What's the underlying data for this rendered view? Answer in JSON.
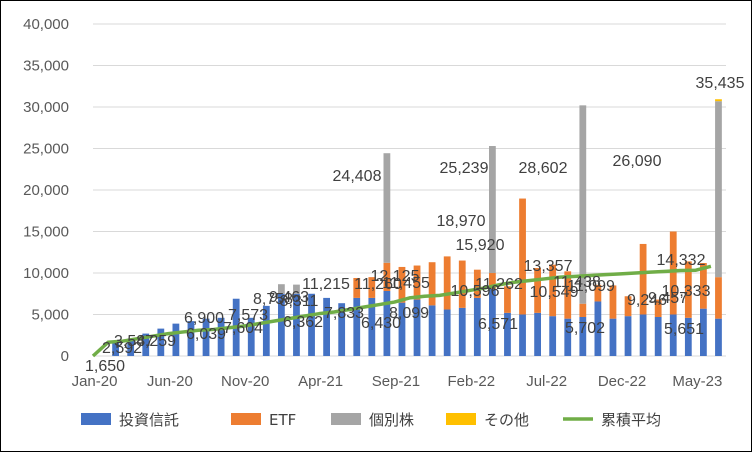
{
  "chart_data": {
    "type": "bar",
    "stacked": true,
    "grid": true,
    "legend_position": "bottom",
    "ylim": [
      0,
      40000
    ],
    "y_ticks": [
      "0",
      "5,000",
      "10,000",
      "15,000",
      "20,000",
      "25,000",
      "30,000",
      "35,000",
      "40,000"
    ],
    "x_tick_labels": [
      "Jan-20",
      "Jun-20",
      "Nov-20",
      "Apr-21",
      "Sep-21",
      "Feb-22",
      "Jul-22",
      "Dec-22",
      "May-23"
    ],
    "x_tick_every": 5,
    "categories": [
      "Jan-20",
      "Feb-20",
      "Mar-20",
      "Apr-20",
      "May-20",
      "Jun-20",
      "Jul-20",
      "Aug-20",
      "Sep-20",
      "Oct-20",
      "Nov-20",
      "Dec-20",
      "Jan-21",
      "Feb-21",
      "Mar-21",
      "Apr-21",
      "May-21",
      "Jun-21",
      "Jul-21",
      "Aug-21",
      "Sep-21",
      "Oct-21",
      "Nov-21",
      "Dec-21",
      "Jan-22",
      "Feb-22",
      "Mar-22",
      "Apr-22",
      "May-22",
      "Jun-22",
      "Jul-22",
      "Aug-22",
      "Sep-22",
      "Oct-22",
      "Nov-22",
      "Dec-22",
      "Jan-23",
      "Feb-23",
      "Mar-23",
      "Apr-23",
      "May-23",
      "Jun-23"
    ],
    "series": [
      {
        "name": "投資信託",
        "color": "#4472c4",
        "values": [
          0,
          1650,
          2000,
          2700,
          3300,
          3900,
          4200,
          4500,
          4600,
          6900,
          4600,
          6039,
          7500,
          7500,
          7500,
          7000,
          6362,
          7000,
          7000,
          7833,
          6430,
          6800,
          6100,
          5600,
          5800,
          7000,
          8099,
          5200,
          5000,
          5200,
          4800,
          4500,
          4700,
          6571,
          4500,
          4800,
          5000,
          4700,
          5000,
          4600,
          5702,
          4500
        ]
      },
      {
        "name": "ETF",
        "color": "#ed7d31",
        "values": [
          0,
          0,
          0,
          0,
          0,
          0,
          0,
          0,
          0,
          0,
          0,
          0,
          0,
          0,
          0,
          0,
          0,
          2400,
          2500,
          3400,
          4300,
          4100,
          5200,
          6400,
          5700,
          3400,
          1900,
          3200,
          13970,
          5400,
          6200,
          5700,
          1600,
          2000,
          4000,
          2400,
          8500,
          2100,
          10000,
          6800,
          5500,
          5000
        ]
      },
      {
        "name": "個別株",
        "color": "#a5a5a5",
        "values": [
          0,
          0,
          0,
          0,
          0,
          0,
          0,
          0,
          0,
          0,
          0,
          0,
          1150,
          1100,
          0,
          0,
          0,
          0,
          0,
          13200,
          0,
          0,
          0,
          0,
          0,
          0,
          15300,
          0,
          0,
          0,
          0,
          0,
          23900,
          0,
          0,
          0,
          0,
          0,
          0,
          0,
          0,
          21200
        ]
      },
      {
        "name": "その他",
        "color": "#ffc000",
        "values": [
          0,
          0,
          0,
          0,
          0,
          0,
          0,
          0,
          0,
          0,
          0,
          0,
          0,
          0,
          0,
          0,
          0,
          0,
          0,
          0,
          0,
          0,
          0,
          0,
          0,
          0,
          0,
          0,
          0,
          0,
          0,
          0,
          0,
          0,
          0,
          0,
          0,
          0,
          0,
          0,
          0,
          235
        ]
      },
      {
        "name": "累積平均",
        "color": "#70ad47",
        "type": "line",
        "values": [
          0,
          1650,
          1800,
          2100,
          2400,
          2700,
          2900,
          3100,
          3200,
          3400,
          3600,
          3900,
          4200,
          4500,
          4800,
          5100,
          5300,
          5600,
          5900,
          6200,
          6500,
          7000,
          7200,
          7300,
          7600,
          7900,
          8200,
          8600,
          8900,
          9100,
          9300,
          9500,
          9600,
          9700,
          9800,
          9900,
          10000,
          10100,
          10200,
          10300,
          10333,
          10800
        ]
      }
    ],
    "data_labels": [
      {
        "text": "1,650"
      },
      {
        "text": "2,592"
      },
      {
        "text": "3,587"
      },
      {
        "text": "4,259"
      },
      {
        "text": "6,900"
      },
      {
        "text": "6,039"
      },
      {
        "text": "7,604"
      },
      {
        "text": "7,573"
      },
      {
        "text": "8,758"
      },
      {
        "text": "9,463"
      },
      {
        "text": "8,311"
      },
      {
        "text": "6,362"
      },
      {
        "text": "11,215"
      },
      {
        "text": "7,833"
      },
      {
        "text": "24,408"
      },
      {
        "text": "11,260"
      },
      {
        "text": "6,430"
      },
      {
        "text": "12,125"
      },
      {
        "text": "11,455"
      },
      {
        "text": "8,099"
      },
      {
        "text": "25,239"
      },
      {
        "text": "18,970"
      },
      {
        "text": "15,920"
      },
      {
        "text": "10,596"
      },
      {
        "text": "11,262"
      },
      {
        "text": "6,571"
      },
      {
        "text": "28,602"
      },
      {
        "text": "13,357"
      },
      {
        "text": "10,549"
      },
      {
        "text": "11,438"
      },
      {
        "text": "11,099"
      },
      {
        "text": "5,702"
      },
      {
        "text": "26,090"
      },
      {
        "text": "9,246"
      },
      {
        "text": "9,457"
      },
      {
        "text": "14,332"
      },
      {
        "text": "10,333"
      },
      {
        "text": "5,651"
      },
      {
        "text": "35,435"
      }
    ]
  }
}
